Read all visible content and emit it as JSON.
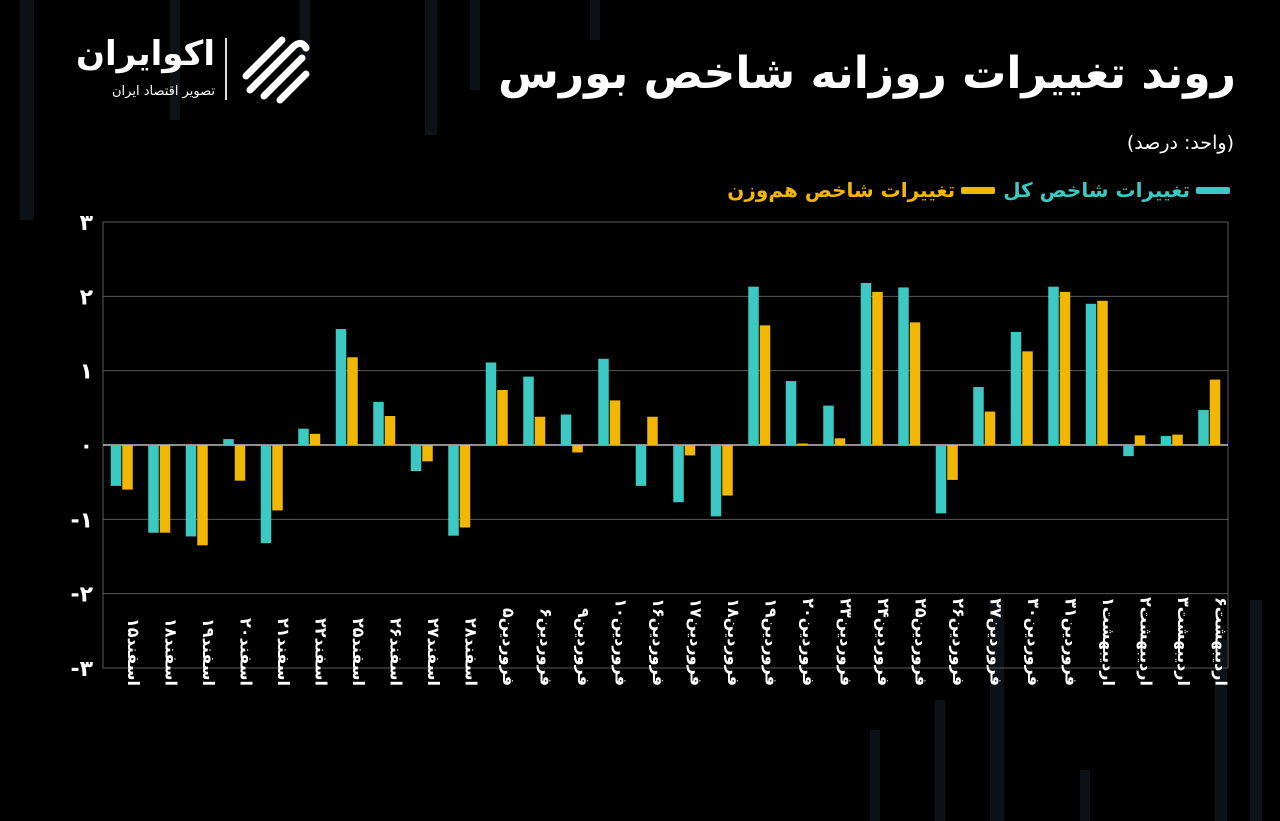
{
  "header": {
    "title": "روند تغییرات روزانه شاخص بورس",
    "unit": "(واحد: درصد)"
  },
  "logo": {
    "name": "اکوایران",
    "tagline": "تصویر اقتصاد ایران"
  },
  "legend": {
    "total_label": "تغییرات شاخص کل",
    "equal_label": "تغییرات شاخص هم‌وزن"
  },
  "colors": {
    "total": "#3cc9c4",
    "equal": "#f2b705",
    "grid": "#5a5a5a",
    "background": "#000000"
  },
  "chart_data": {
    "type": "bar",
    "ylim": [
      -3,
      3
    ],
    "yticks": [
      3,
      2,
      1,
      0,
      -1,
      -2,
      -3
    ],
    "ytick_labels": [
      "۳",
      "۲",
      "۱",
      "۰",
      "-۱",
      "-۲",
      "-۳"
    ],
    "grid": true,
    "legend_position": "top-right",
    "categories": [
      "اسفند۱۵",
      "اسفند۱۸",
      "اسفند۱۹",
      "اسفند۲۰",
      "اسفند۲۱",
      "اسفند۲۲",
      "اسفند۲۵",
      "اسفند۲۶",
      "اسفند۲۷",
      "اسفند۲۸",
      "فروردین۵",
      "فروردین۶",
      "فروردین۹",
      "فروردین۱۰",
      "فروردین۱۶",
      "فروردین۱۷",
      "فروردین۱۸",
      "فروردین۱۹",
      "فروردین۲۰",
      "فروردین۲۳",
      "فروردین۲۴",
      "فروردین۲۵",
      "فروردین۲۶",
      "فروردین۲۷",
      "فروردین۳۰",
      "فروردین۳۱",
      "اردیبهشت۱",
      "اردیبهشت۲",
      "اردیبهشت۳",
      "اردیبهشت۶"
    ],
    "series": [
      {
        "name": "تغییرات شاخص کل",
        "values": [
          -0.55,
          -1.18,
          -1.23,
          0.08,
          -1.32,
          0.22,
          1.56,
          0.58,
          -0.35,
          -1.22,
          1.11,
          0.92,
          0.41,
          1.16,
          -0.55,
          -0.77,
          -0.96,
          2.13,
          0.86,
          0.53,
          2.18,
          2.12,
          -0.92,
          0.78,
          1.52,
          2.13,
          1.9,
          -0.15,
          0.12,
          0.47
        ]
      },
      {
        "name": "تغییرات شاخص هم‌وزن",
        "values": [
          -0.6,
          -1.18,
          -1.35,
          -0.48,
          -0.88,
          0.15,
          1.18,
          0.39,
          -0.22,
          -1.11,
          0.74,
          0.38,
          -0.1,
          0.6,
          0.38,
          -0.14,
          -0.68,
          1.61,
          0.02,
          0.09,
          2.06,
          1.65,
          -0.47,
          0.45,
          1.26,
          2.06,
          1.94,
          0.13,
          0.14,
          0.88
        ]
      }
    ]
  }
}
